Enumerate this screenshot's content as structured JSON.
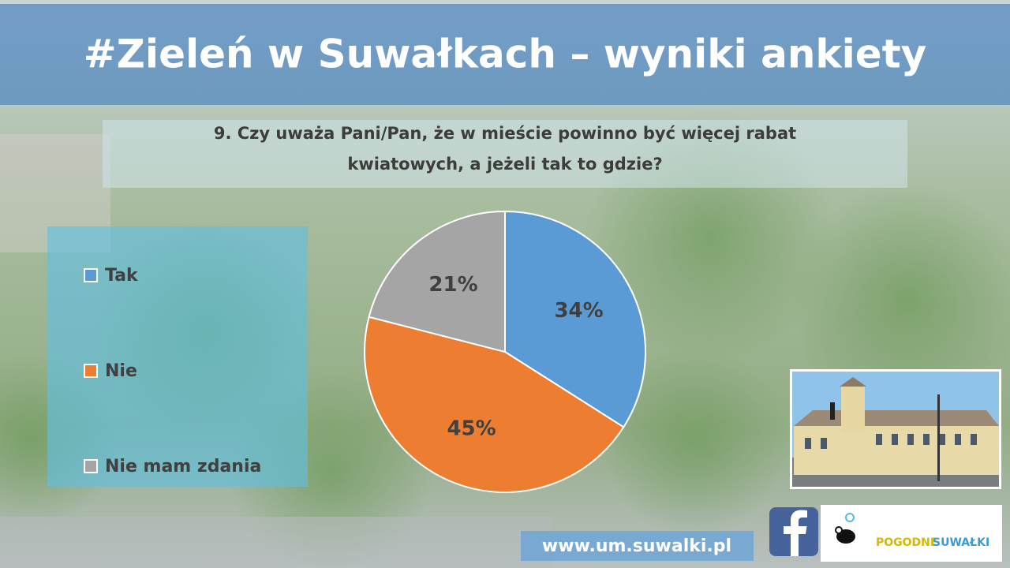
{
  "chart_data": {
    "type": "pie",
    "title": "#Zieleń w Suwałkach – wyniki ankiety",
    "subtitle": [
      "9. Czy uważa Pani/Pan, że w mieście powinno być więcej rabat",
      "kwiatowych, a jeżeli tak to gdzie?"
    ],
    "categories": [
      "Tak",
      "Nie",
      "Nie mam zdania"
    ],
    "values": [
      34,
      45,
      21
    ],
    "value_labels": [
      "34%",
      "45%",
      "21%"
    ],
    "colors": [
      "#5b9bd5",
      "#ed7d31",
      "#a5a5a5"
    ],
    "legend": "left"
  },
  "footer": {
    "url": "www.um.suwalki.pl",
    "logo": [
      "POGODNE",
      "SUWAŁKI"
    ]
  }
}
